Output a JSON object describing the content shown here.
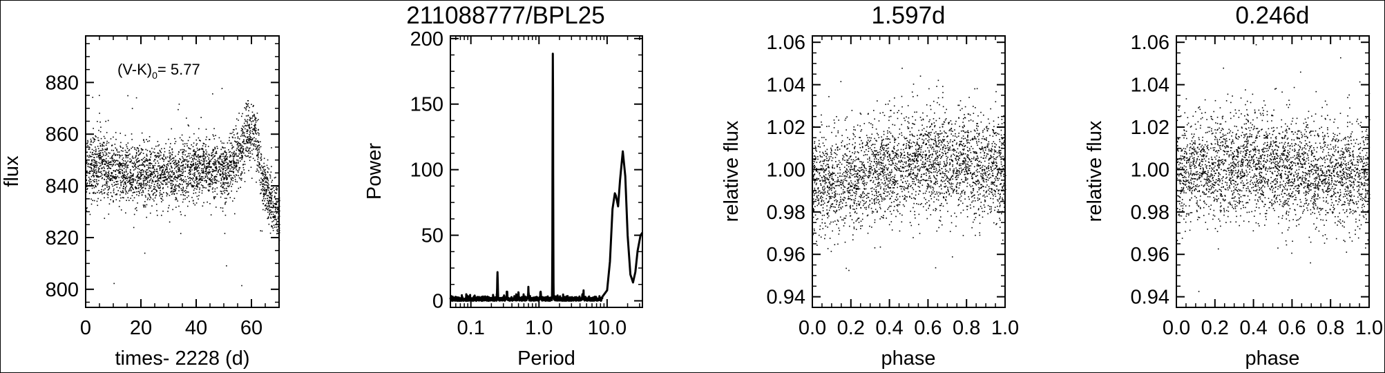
{
  "chart_data": [
    {
      "type": "scatter",
      "title": "",
      "xlabel": "times- 2228 (d)",
      "ylabel": "flux",
      "xlim": [
        0,
        70
      ],
      "ylim": [
        793,
        898
      ],
      "xticks": [
        0,
        20,
        40,
        60
      ],
      "xtick_labels": [
        "0",
        "20",
        "40",
        "60"
      ],
      "yticks": [
        800,
        820,
        840,
        860,
        880
      ],
      "ytick_labels": [
        "800",
        "820",
        "840",
        "860",
        "880"
      ],
      "annotation": {
        "base": "(V-K)",
        "sub": "0",
        "rest": "= 5.77"
      },
      "trend": {
        "x": [
          0,
          5,
          10,
          15,
          20,
          25,
          30,
          35,
          40,
          45,
          50,
          55,
          58,
          61,
          63,
          65,
          68,
          70
        ],
        "y": [
          846,
          847,
          846,
          845,
          845,
          845,
          844,
          845,
          847,
          848,
          846,
          850,
          860,
          862,
          848,
          838,
          832,
          828
        ]
      },
      "point_count": 3000,
      "scatter_spread": 6
    },
    {
      "type": "line",
      "title": "211088777/BPL25",
      "xlabel": "Period",
      "ylabel": "Power",
      "xscale": "log",
      "xlim": [
        0.05,
        33
      ],
      "ylim": [
        -5,
        202
      ],
      "xticks": [
        0.1,
        1.0,
        10.0
      ],
      "xtick_labels": [
        "0.1",
        "1.0",
        "10.0"
      ],
      "yticks": [
        0,
        50,
        100,
        150,
        200
      ],
      "ytick_labels": [
        "0",
        "50",
        "100",
        "150",
        "200"
      ],
      "peaks": [
        {
          "period": 0.246,
          "power": 20
        },
        {
          "period": 0.34,
          "power": 6
        },
        {
          "period": 0.5,
          "power": 5
        },
        {
          "period": 0.7,
          "power": 7
        },
        {
          "period": 1.06,
          "power": 6
        },
        {
          "period": 1.597,
          "power": 186
        },
        {
          "period": 4.5,
          "power": 5
        },
        {
          "period": 9.0,
          "power": 13
        },
        {
          "period": 13.5,
          "power": 82
        },
        {
          "period": 17.0,
          "power": 114
        }
      ],
      "long_period_curve": {
        "period": [
          8.5,
          10,
          11,
          12,
          13,
          13.5,
          14.5,
          15.5,
          17,
          18.5,
          20,
          22,
          24,
          26,
          28,
          31,
          33
        ],
        "power": [
          3,
          8,
          30,
          70,
          82,
          80,
          72,
          92,
          114,
          95,
          50,
          20,
          14,
          22,
          38,
          50,
          52
        ]
      }
    },
    {
      "type": "scatter",
      "title": "1.597d",
      "xlabel": "phase",
      "ylabel": "relative flux",
      "xlim": [
        0.0,
        1.0
      ],
      "ylim": [
        0.935,
        1.063
      ],
      "xticks": [
        0.0,
        0.2,
        0.4,
        0.6,
        0.8,
        1.0
      ],
      "xtick_labels": [
        "0.0",
        "0.2",
        "0.4",
        "0.6",
        "0.8",
        "1.0"
      ],
      "yticks": [
        0.94,
        0.96,
        0.98,
        1.0,
        1.02,
        1.04,
        1.06
      ],
      "ytick_labels": [
        "0.94",
        "0.96",
        "0.98",
        "1.00",
        "1.02",
        "1.04",
        "1.06"
      ],
      "phase_trend": {
        "x": [
          0.0,
          0.2,
          0.4,
          0.6,
          0.8,
          1.0
        ],
        "y": [
          0.993,
          0.996,
          1.001,
          1.005,
          1.003,
          0.998
        ]
      },
      "point_count": 3000,
      "scatter_spread": 0.012
    },
    {
      "type": "scatter",
      "title": "0.246d",
      "xlabel": "phase",
      "ylabel": "relative flux",
      "xlim": [
        0.0,
        1.0
      ],
      "ylim": [
        0.935,
        1.063
      ],
      "xticks": [
        0.0,
        0.2,
        0.4,
        0.6,
        0.8,
        1.0
      ],
      "xtick_labels": [
        "0.0",
        "0.2",
        "0.4",
        "0.6",
        "0.8",
        "1.0"
      ],
      "yticks": [
        0.94,
        0.96,
        0.98,
        1.0,
        1.02,
        1.04,
        1.06
      ],
      "ytick_labels": [
        "0.94",
        "0.96",
        "0.98",
        "1.00",
        "1.02",
        "1.04",
        "1.06"
      ],
      "phase_trend": {
        "x": [
          0.0,
          0.2,
          0.4,
          0.6,
          0.8,
          1.0
        ],
        "y": [
          1.0,
          1.002,
          1.003,
          1.0,
          0.998,
          0.997
        ]
      },
      "point_count": 3000,
      "scatter_spread": 0.012
    }
  ]
}
